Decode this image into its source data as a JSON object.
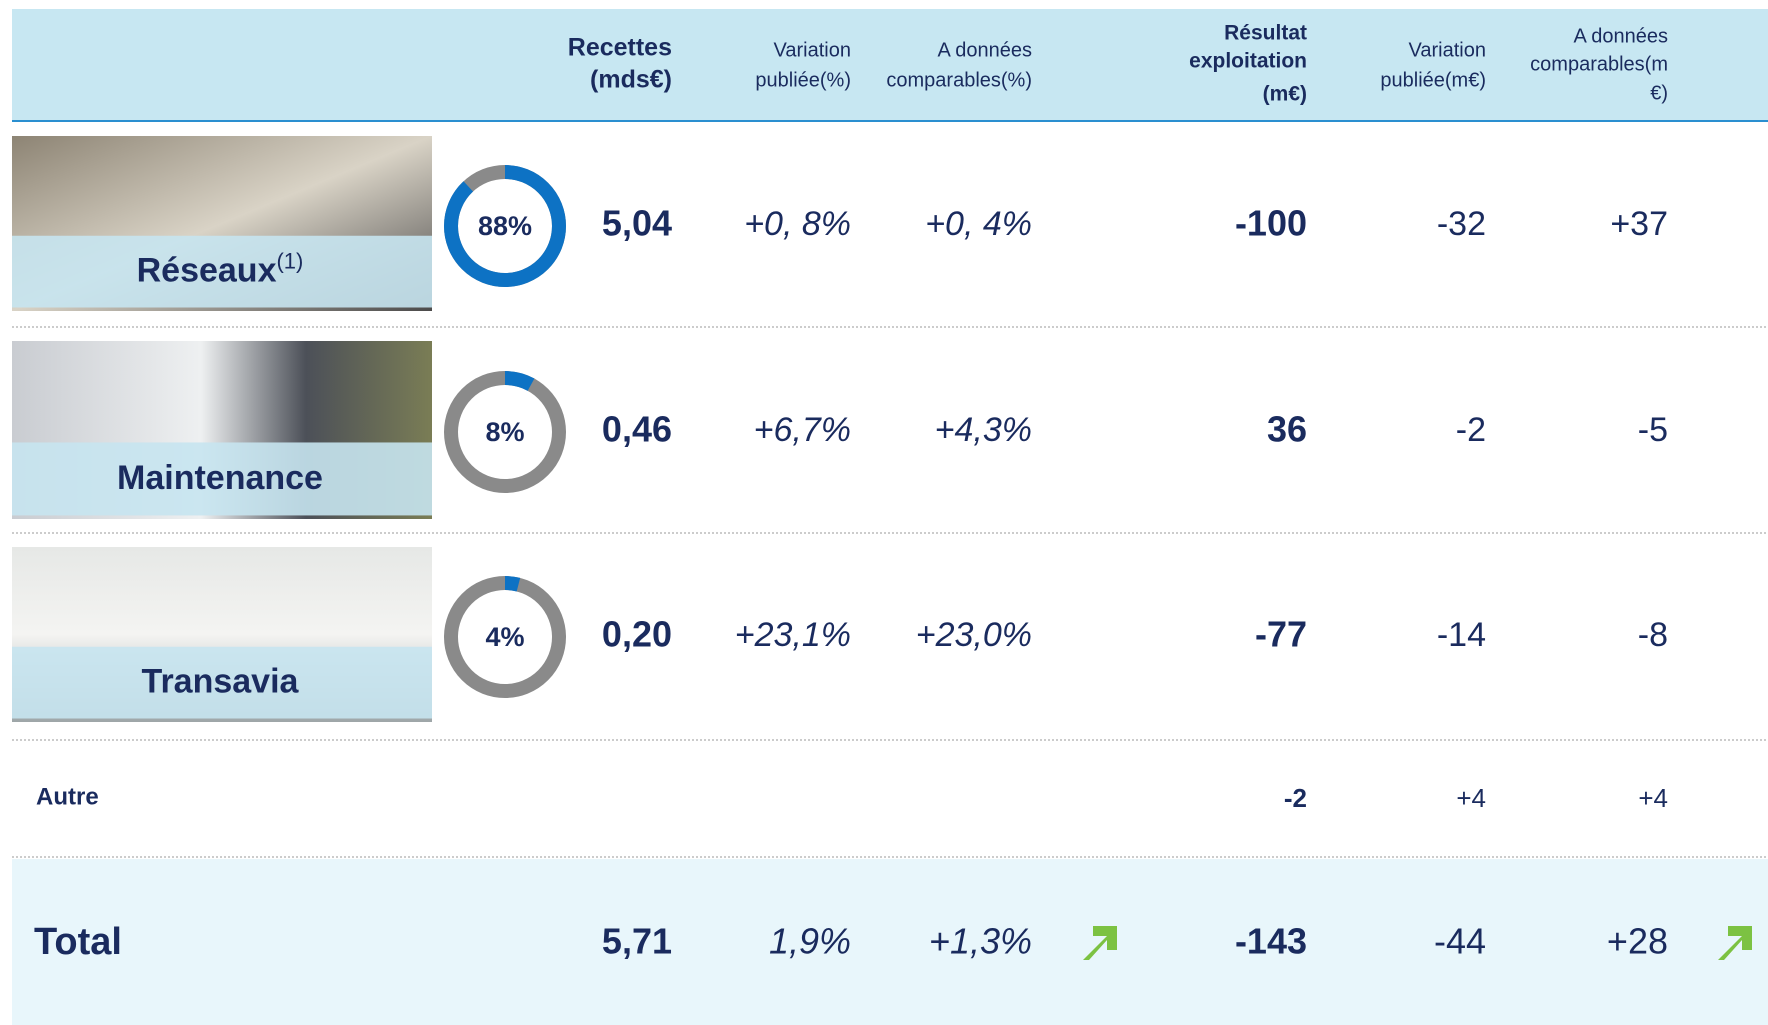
{
  "header": {
    "columns": [
      {
        "lines": [
          "Recettes",
          "(mds€)"
        ]
      },
      {
        "lines": [
          "Variation",
          "publiée(%)"
        ]
      },
      {
        "lines": [
          "A données",
          "comparables(%)"
        ]
      },
      {
        "lines": [
          "Résultat",
          "exploitation",
          "(m€)"
        ]
      },
      {
        "lines": [
          "Variation",
          "publiée(m€)"
        ]
      },
      {
        "lines": [
          "A données",
          "comparables(m",
          "€)"
        ]
      }
    ]
  },
  "rows": [
    {
      "label": "Réseaux",
      "note": "(1)",
      "share": {
        "value": 88,
        "label": "88%"
      },
      "cells": [
        "5,04",
        "+0, 8%",
        "+0, 4%",
        "-100",
        "-32",
        "+37"
      ]
    },
    {
      "label": "Maintenance",
      "share": {
        "value": 8,
        "label": "8%"
      },
      "cells": [
        "0,46",
        "+6,7%",
        "+4,3%",
        "36",
        "-2",
        "-5"
      ]
    },
    {
      "label": "Transavia",
      "share": {
        "value": 4,
        "label": "4%"
      },
      "cells": [
        "0,20",
        "+23,1%",
        "+23,0%",
        "-77",
        "-14",
        "-8"
      ]
    }
  ],
  "other": {
    "label": "Autre",
    "cells": [
      null,
      null,
      null,
      "-2",
      "+4",
      "+4"
    ]
  },
  "total": {
    "label": "Total",
    "cells": [
      "5,71",
      "1,9%",
      "+1,3%",
      "-143",
      "-44",
      "+28"
    ]
  }
}
